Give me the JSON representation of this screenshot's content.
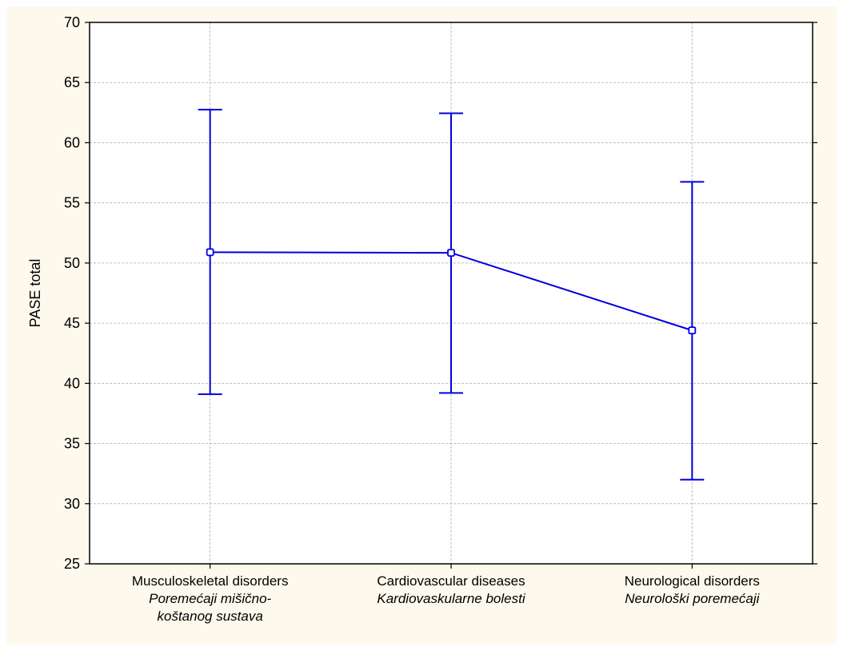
{
  "chart_data": {
    "type": "line",
    "ylabel": "PASE total",
    "ylim": [
      25,
      70
    ],
    "y_ticks": [
      25,
      30,
      35,
      40,
      45,
      50,
      55,
      60,
      65,
      70
    ],
    "grid": true,
    "categories": [
      {
        "label_lines": [
          "Musculoskeletal  disorders"
        ],
        "label_italic_lines": [
          "Poremećaji mišično-",
          "koštanog sustava"
        ]
      },
      {
        "label_lines": [
          "Cardiovascular diseases"
        ],
        "label_italic_lines": [
          "Kardiovaskularne bolesti"
        ]
      },
      {
        "label_lines": [
          "Neurological disorders"
        ],
        "label_italic_lines": [
          "Neurološki poremećaji"
        ]
      }
    ],
    "series": [
      {
        "values": [
          50.9,
          50.85,
          44.4
        ],
        "error_upper": [
          62.75,
          62.45,
          56.75
        ],
        "error_lower": [
          39.1,
          39.2,
          32.0
        ],
        "color": "#0000dd"
      }
    ]
  }
}
